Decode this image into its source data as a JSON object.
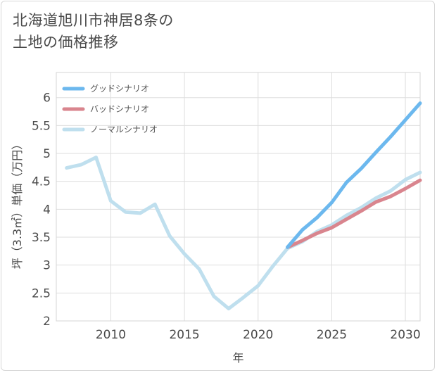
{
  "title_line1": "北海道旭川市神居8条の",
  "title_line2": "土地の価格推移",
  "chart_data": {
    "type": "line",
    "title": "北海道旭川市神居8条の土地の価格推移",
    "xlabel": "年",
    "ylabel": "坪（3.3㎡）単価（万円）",
    "xlim": [
      2006.3,
      2031
    ],
    "ylim": [
      2,
      6.45
    ],
    "x_ticks": [
      2010,
      2015,
      2020,
      2025,
      2030
    ],
    "y_ticks": [
      2,
      2.5,
      3,
      3.5,
      4,
      4.5,
      5,
      5.5,
      6
    ],
    "y_tick_labels": [
      "2",
      "2.5",
      "3",
      "3.5",
      "4",
      "4.5",
      "5",
      "5.5",
      "6"
    ],
    "grid": true,
    "legend_position": "top-left",
    "series": [
      {
        "name": "グッドシナリオ",
        "color": "#6cb8ee",
        "x": [
          2022,
          2023,
          2024,
          2025,
          2026,
          2027,
          2028,
          2029,
          2030,
          2031
        ],
        "values": [
          3.32,
          3.63,
          3.85,
          4.12,
          4.48,
          4.73,
          5.02,
          5.3,
          5.6,
          5.9
        ]
      },
      {
        "name": "バッドシナリオ",
        "color": "#d9858e",
        "x": [
          2022,
          2023,
          2024,
          2025,
          2026,
          2027,
          2028,
          2029,
          2030,
          2031
        ],
        "values": [
          3.32,
          3.44,
          3.57,
          3.67,
          3.82,
          3.97,
          4.13,
          4.23,
          4.37,
          4.52
        ]
      },
      {
        "name": "ノーマルシナリオ",
        "color": "#bfdfee",
        "x": [
          2007,
          2008,
          2009,
          2010,
          2011,
          2012,
          2013,
          2014,
          2015,
          2016,
          2017,
          2018,
          2019,
          2020,
          2021,
          2022,
          2023,
          2024,
          2025,
          2026,
          2027,
          2028,
          2029,
          2030,
          2031
        ],
        "values": [
          4.74,
          4.8,
          4.93,
          4.15,
          3.95,
          3.93,
          4.09,
          3.52,
          3.2,
          2.93,
          2.44,
          2.22,
          2.42,
          2.63,
          2.98,
          3.3,
          3.42,
          3.6,
          3.72,
          3.89,
          4.03,
          4.2,
          4.33,
          4.53,
          4.66
        ]
      }
    ]
  }
}
